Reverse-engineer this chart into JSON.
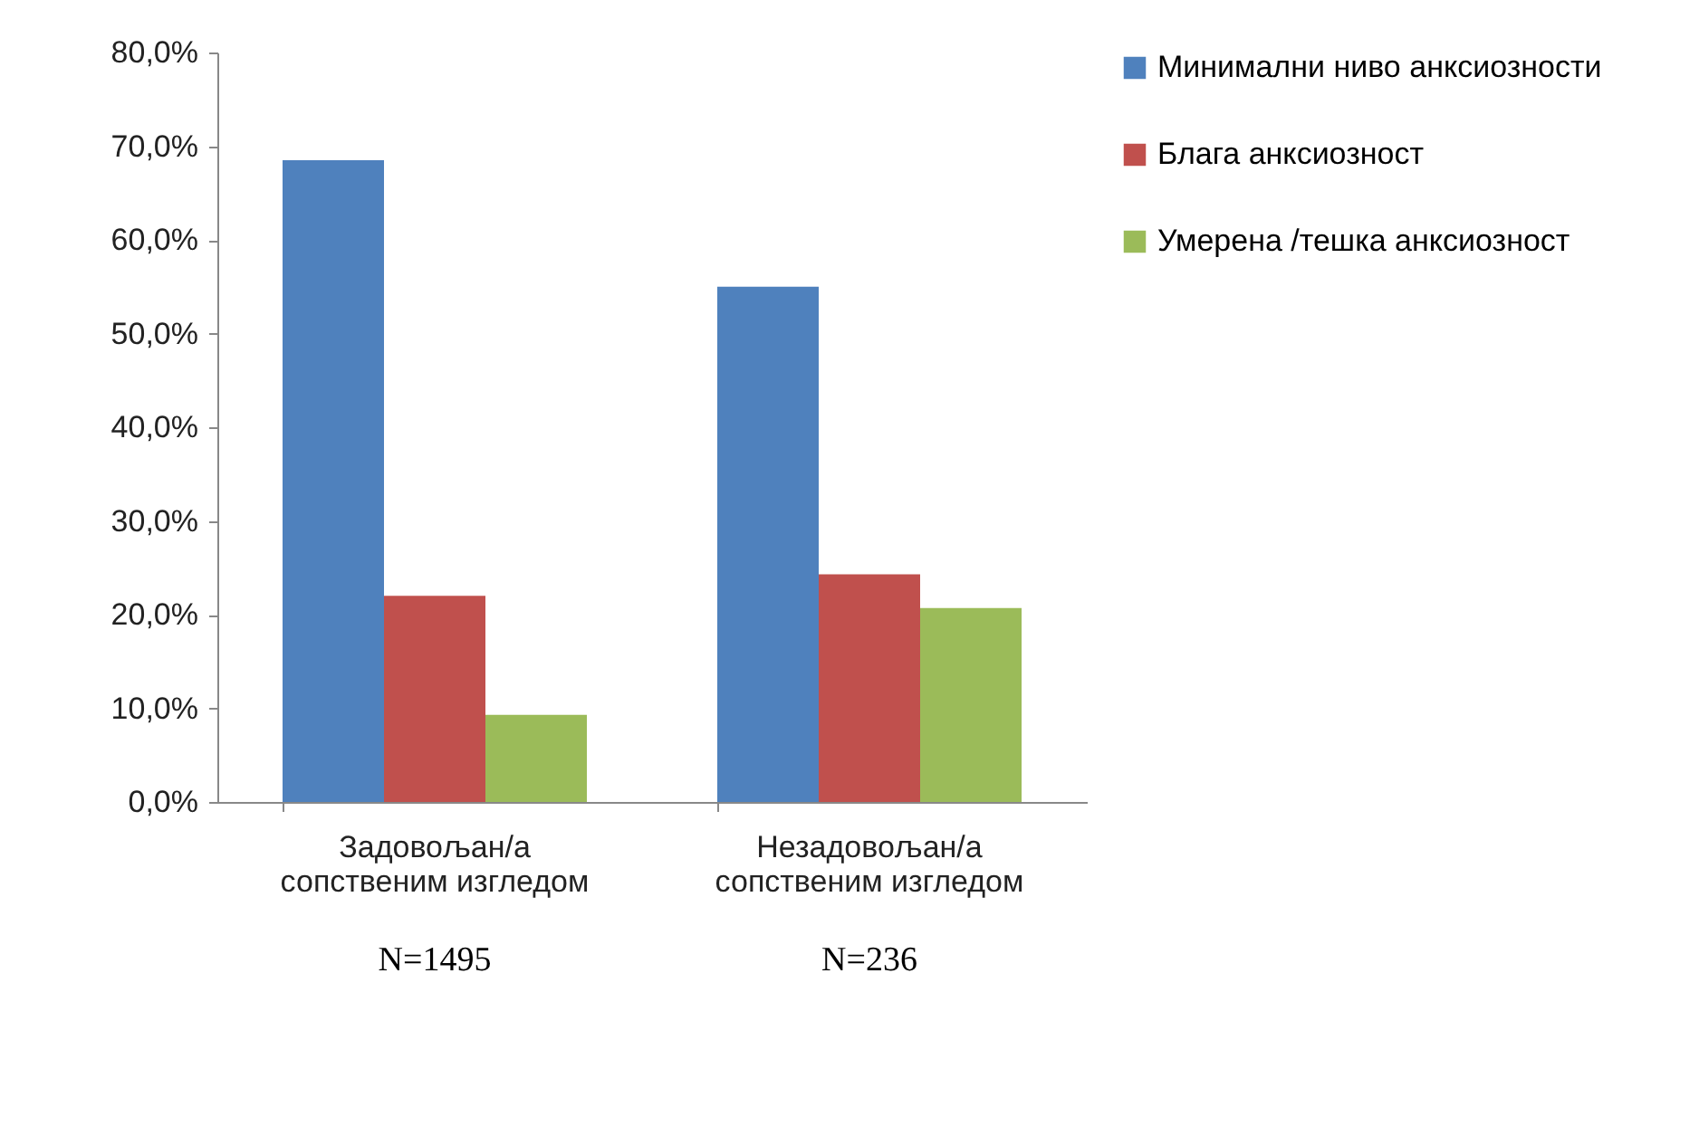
{
  "chart_data": {
    "type": "bar",
    "categories": [
      "Задовољан/а сопственим изгледом",
      "Незадовољан/а сопственим изгледом"
    ],
    "series": [
      {
        "name": "Минимални ниво анксиозности",
        "color": "#4f81bd",
        "values": [
          68.5,
          55.0
        ]
      },
      {
        "name": "Блага анксиозност",
        "color": "#c0504d",
        "values": [
          22.0,
          24.3
        ]
      },
      {
        "name": "Умерена /тешка анксиозност",
        "color": "#9bbb59",
        "values": [
          9.3,
          20.7
        ]
      }
    ],
    "ylim": [
      0,
      80
    ],
    "yticks": [
      {
        "value": 0,
        "label": "0,0%"
      },
      {
        "value": 10,
        "label": "10,0%"
      },
      {
        "value": 20,
        "label": "20,0%"
      },
      {
        "value": 30,
        "label": "30,0%"
      },
      {
        "value": 40,
        "label": "40,0%"
      },
      {
        "value": 50,
        "label": "50,0%"
      },
      {
        "value": 60,
        "label": "60,0%"
      },
      {
        "value": 70,
        "label": "70,0%"
      },
      {
        "value": 80,
        "label": "80,0%"
      }
    ],
    "grid": false,
    "legend": "right",
    "annotations": [
      "N=1495",
      "N=236"
    ]
  }
}
